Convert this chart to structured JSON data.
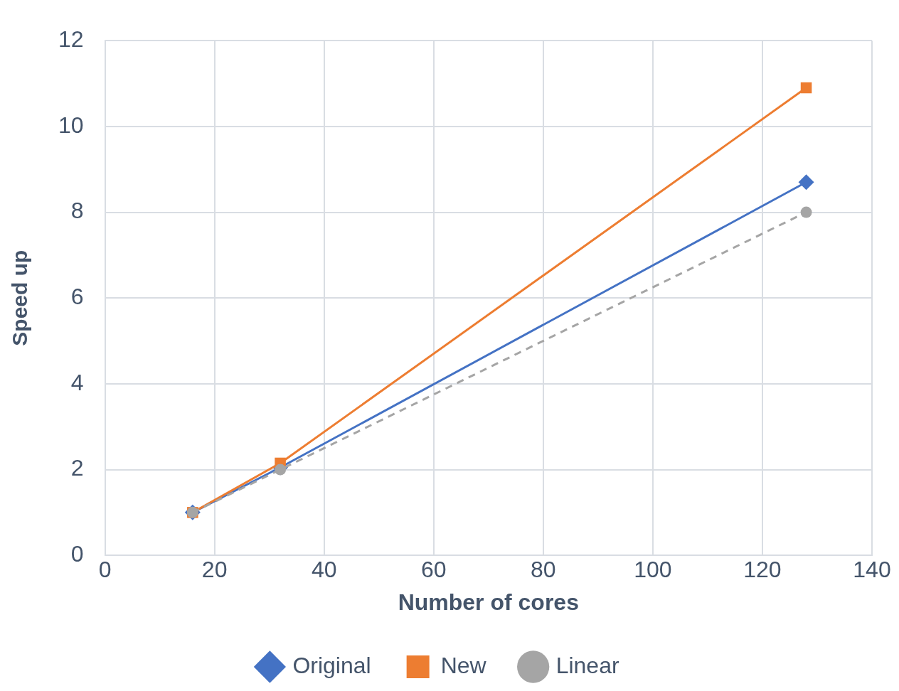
{
  "chart_data": {
    "type": "line",
    "xlabel": "Number of cores",
    "ylabel": "Speed up",
    "x": [
      16,
      32,
      128
    ],
    "series": [
      {
        "name": "Original",
        "color": "#4472c4",
        "values": [
          1,
          2.05,
          8.7
        ],
        "marker": "diamond",
        "line_style": "solid"
      },
      {
        "name": "New",
        "color": "#ed7d31",
        "values": [
          1,
          2.15,
          10.9
        ],
        "marker": "square",
        "line_style": "solid"
      },
      {
        "name": "Linear",
        "color": "#a5a5a5",
        "values": [
          1,
          2,
          8
        ],
        "marker": "circle",
        "line_style": "dashed"
      }
    ],
    "xlim": [
      0,
      140
    ],
    "xticks": [
      0,
      20,
      40,
      60,
      80,
      100,
      120,
      140
    ],
    "ylim": [
      0,
      12
    ],
    "yticks": [
      0,
      2,
      4,
      6,
      8,
      10,
      12
    ],
    "grid": true,
    "legend": "bottom"
  }
}
